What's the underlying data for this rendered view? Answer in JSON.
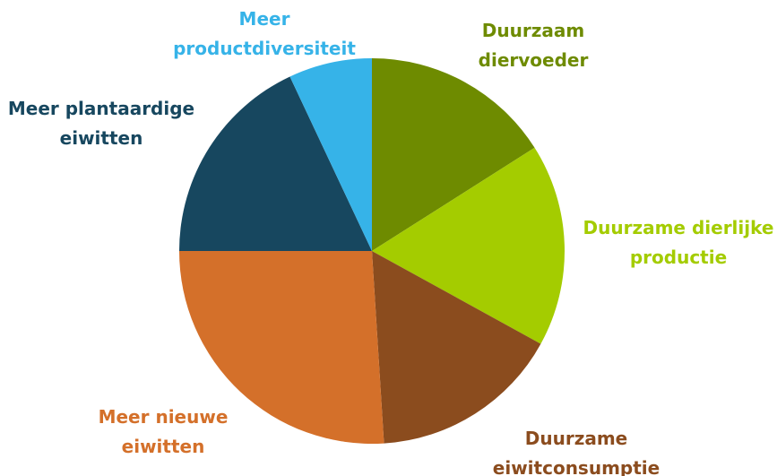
{
  "chart_data": {
    "type": "pie",
    "categories": [
      "Duurzaam\ndiervoeder",
      "Duurzame dierlijke\nproductie",
      "Duurzame\neiwitconsumptie",
      "Meer nieuwe\neiwitten",
      "Meer plantaardige\neiwitten",
      "Meer\nproductdiversiteit"
    ],
    "values": [
      16,
      17,
      16,
      26,
      18,
      7
    ],
    "colors": [
      "#6e8b00",
      "#a4cc00",
      "#8b4c1e",
      "#d4702a",
      "#17475f",
      "#36b3e8"
    ]
  }
}
